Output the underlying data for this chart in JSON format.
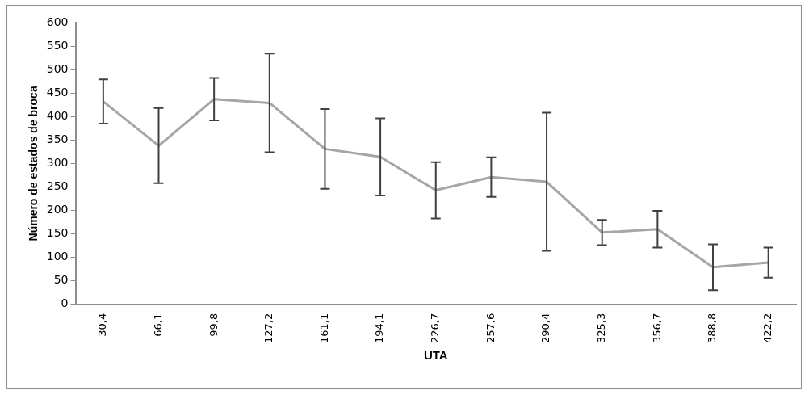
{
  "chart_data": {
    "type": "line",
    "xlabel": "UTA",
    "ylabel": "Número de estados de broca",
    "categories": [
      "30,4",
      "66,1",
      "99,8",
      "127,2",
      "161,1",
      "194,1",
      "226,7",
      "257,6",
      "290,4",
      "325,3",
      "356,7",
      "388,8",
      "422,2"
    ],
    "series": [
      {
        "color": "#a6a6a6",
        "values": [
          432,
          338,
          437,
          429,
          331,
          314,
          243,
          271,
          261,
          153,
          160,
          79,
          89
        ],
        "errors": [
          47,
          80,
          45,
          105,
          85,
          82,
          60,
          42,
          147,
          27,
          39,
          49,
          32
        ]
      }
    ],
    "ylim": [
      0,
      600
    ],
    "yticks": [
      0,
      50,
      100,
      150,
      200,
      250,
      300,
      350,
      400,
      450,
      500,
      550,
      600
    ],
    "grid": false,
    "legend": false,
    "marker": "none",
    "line_style": "solid"
  }
}
